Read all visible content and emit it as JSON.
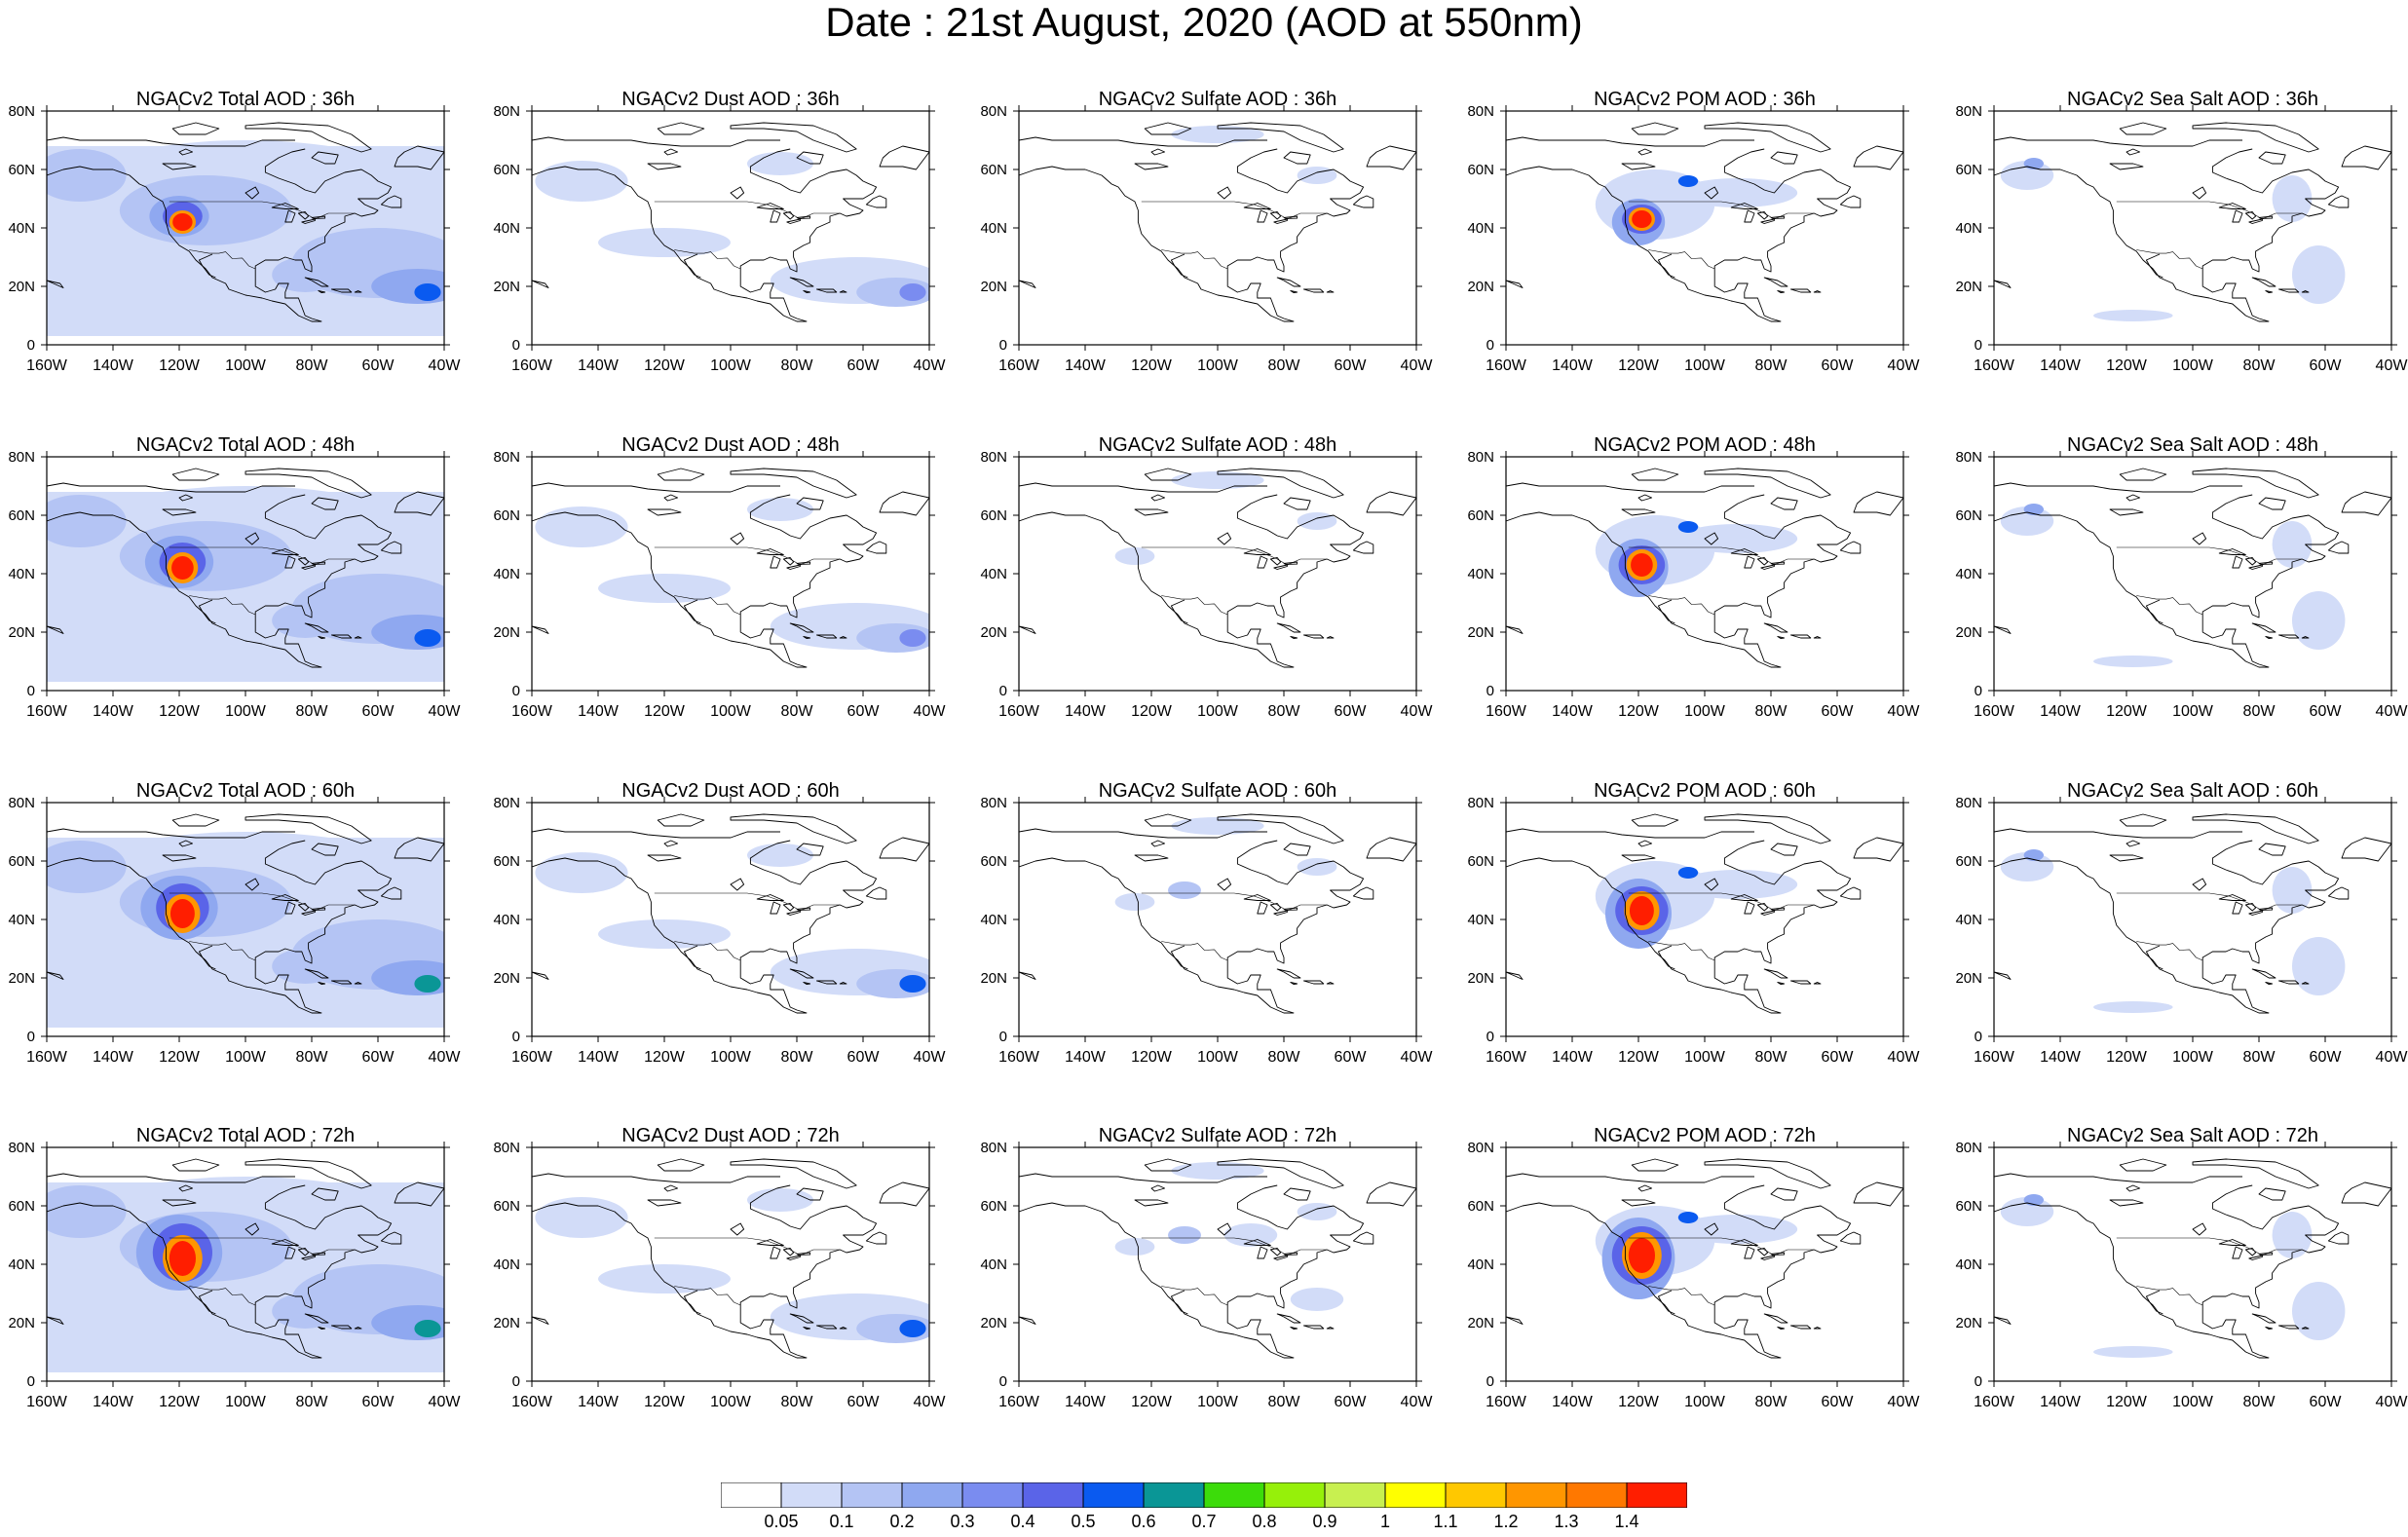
{
  "title": "Date : 21st August, 2020 (AOD at 550nm)",
  "axes": {
    "x_ticks": [
      "160W",
      "140W",
      "120W",
      "100W",
      "80W",
      "60W",
      "40W"
    ],
    "y_ticks": [
      "0",
      "20N",
      "40N",
      "60N",
      "80N"
    ],
    "lon_range": [
      -160,
      -40
    ],
    "lat_range": [
      0,
      80
    ]
  },
  "panels": [
    {
      "title": "NGACv2 Total AOD : 36h",
      "species": "total",
      "hour": 36
    },
    {
      "title": "NGACv2 Dust AOD : 36h",
      "species": "dust",
      "hour": 36
    },
    {
      "title": "NGACv2 Sulfate AOD : 36h",
      "species": "sulfate",
      "hour": 36
    },
    {
      "title": "NGACv2 POM AOD : 36h",
      "species": "pom",
      "hour": 36
    },
    {
      "title": "NGACv2 Sea Salt AOD : 36h",
      "species": "seasalt",
      "hour": 36
    },
    {
      "title": "NGACv2 Total AOD : 48h",
      "species": "total",
      "hour": 48
    },
    {
      "title": "NGACv2 Dust AOD : 48h",
      "species": "dust",
      "hour": 48
    },
    {
      "title": "NGACv2 Sulfate AOD : 48h",
      "species": "sulfate",
      "hour": 48
    },
    {
      "title": "NGACv2 POM AOD : 48h",
      "species": "pom",
      "hour": 48
    },
    {
      "title": "NGACv2 Sea Salt AOD : 48h",
      "species": "seasalt",
      "hour": 48
    },
    {
      "title": "NGACv2 Total AOD : 60h",
      "species": "total",
      "hour": 60
    },
    {
      "title": "NGACv2 Dust AOD : 60h",
      "species": "dust",
      "hour": 60
    },
    {
      "title": "NGACv2 Sulfate AOD : 60h",
      "species": "sulfate",
      "hour": 60
    },
    {
      "title": "NGACv2 POM AOD : 60h",
      "species": "pom",
      "hour": 60
    },
    {
      "title": "NGACv2 Sea Salt AOD : 60h",
      "species": "seasalt",
      "hour": 60
    },
    {
      "title": "NGACv2 Total AOD : 72h",
      "species": "total",
      "hour": 72
    },
    {
      "title": "NGACv2 Dust AOD : 72h",
      "species": "dust",
      "hour": 72
    },
    {
      "title": "NGACv2 Sulfate AOD : 72h",
      "species": "sulfate",
      "hour": 72
    },
    {
      "title": "NGACv2 POM AOD : 72h",
      "species": "pom",
      "hour": 72
    },
    {
      "title": "NGACv2 Sea Salt  AOD : 72h",
      "species": "seasalt",
      "hour": 72
    }
  ],
  "colorbar": {
    "labels": [
      "0.05",
      "0.1",
      "0.2",
      "0.3",
      "0.4",
      "0.5",
      "0.6",
      "0.7",
      "0.8",
      "0.9",
      "1",
      "1.1",
      "1.2",
      "1.3",
      "1.4"
    ],
    "colors": [
      "#ffffff",
      "#d2dcf8",
      "#b4c4f4",
      "#8fa8f0",
      "#7a8cf0",
      "#5a64e8",
      "#0a5af0",
      "#0a9696",
      "#3cdc0a",
      "#96f00a",
      "#c8f050",
      "#ffff00",
      "#ffc800",
      "#ff9600",
      "#ff7800",
      "#ff1e00"
    ]
  },
  "map_colors": {
    "coastline": "#000000",
    "total_base": "#d2dcf8",
    "plume_core": "#ff1e00"
  }
}
